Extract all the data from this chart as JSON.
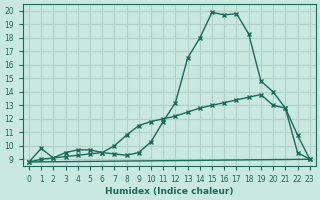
{
  "xlabel": "Humidex (Indice chaleur)",
  "ylabel": "",
  "background_color": "#c8e8e0",
  "grid_color": "#b0d0c8",
  "line_color": "#1a6b5a",
  "xlim": [
    -0.5,
    23.5
  ],
  "ylim": [
    8.5,
    20.5
  ],
  "xticks": [
    0,
    1,
    2,
    3,
    4,
    5,
    6,
    7,
    8,
    9,
    10,
    11,
    12,
    13,
    14,
    15,
    16,
    17,
    18,
    19,
    20,
    21,
    22,
    23
  ],
  "yticks": [
    9,
    10,
    11,
    12,
    13,
    14,
    15,
    16,
    17,
    18,
    19,
    20
  ],
  "curve1_x": [
    0,
    1,
    2,
    3,
    4,
    5,
    6,
    7,
    8,
    9,
    10,
    11,
    12,
    13,
    14,
    15,
    16,
    17,
    18,
    19,
    20,
    21,
    22,
    23
  ],
  "curve1_y": [
    8.8,
    9.8,
    9.1,
    9.5,
    9.7,
    9.7,
    9.5,
    9.4,
    9.3,
    9.5,
    10.3,
    11.8,
    13.2,
    16.5,
    18.0,
    19.9,
    19.7,
    19.8,
    18.3,
    14.8,
    14.0,
    12.8,
    10.8,
    9.0
  ],
  "curve2_x": [
    0,
    1,
    2,
    3,
    4,
    5,
    6,
    7,
    8,
    9,
    10,
    11,
    12,
    13,
    14,
    15,
    16,
    17,
    18,
    19,
    20,
    21,
    22,
    23
  ],
  "curve2_y": [
    8.8,
    9.0,
    9.1,
    9.2,
    9.3,
    9.4,
    9.5,
    10.0,
    10.8,
    11.5,
    11.8,
    12.0,
    12.2,
    12.5,
    12.8,
    13.0,
    13.2,
    13.4,
    13.6,
    13.8,
    13.0,
    12.8,
    9.5,
    9.0
  ],
  "curve3_x": [
    0,
    23
  ],
  "curve3_y": [
    8.8,
    9.0
  ]
}
